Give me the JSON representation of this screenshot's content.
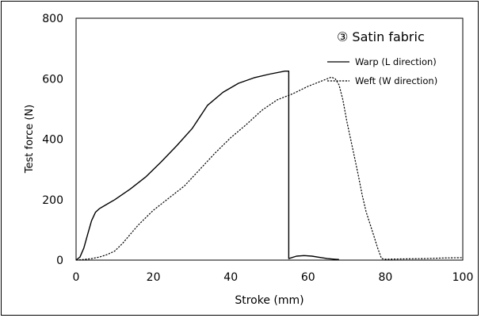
{
  "chart_data": {
    "type": "line",
    "title": "③ Satin fabric",
    "xlabel": "Stroke (mm)",
    "ylabel": "Test force (N)",
    "xlim": [
      0,
      100
    ],
    "ylim": [
      0,
      800
    ],
    "xticks": [
      "0",
      "20",
      "40",
      "60",
      "80",
      "100"
    ],
    "yticks": [
      "0",
      "200",
      "400",
      "600",
      "800"
    ],
    "grid": false,
    "legend_position": "top-right",
    "series": [
      {
        "name": "Warp (L direction)",
        "style": "solid",
        "color": "#000000",
        "x": [
          0,
          1,
          2,
          3,
          4,
          5,
          6,
          8,
          10,
          14,
          18,
          22,
          26,
          30,
          34,
          38,
          42,
          46,
          50,
          54,
          55,
          55,
          57,
          59,
          61,
          63,
          65,
          67,
          68
        ],
        "y": [
          0,
          10,
          40,
          85,
          130,
          158,
          170,
          185,
          200,
          235,
          275,
          325,
          378,
          435,
          512,
          555,
          585,
          603,
          615,
          625,
          625,
          5,
          13,
          15,
          13,
          9,
          5,
          3,
          2
        ]
      },
      {
        "name": "Weft (W direction)",
        "style": "dashed",
        "color": "#000000",
        "x": [
          0,
          2,
          4,
          6,
          8,
          10,
          12,
          14,
          16,
          18,
          20,
          24,
          28,
          32,
          36,
          40,
          44,
          48,
          52,
          56,
          60,
          62,
          64,
          66,
          67,
          68,
          69,
          70,
          71,
          72,
          73,
          74,
          75,
          76,
          77,
          78,
          79,
          80,
          84,
          90,
          95,
          100
        ],
        "y": [
          0,
          2,
          5,
          10,
          18,
          30,
          55,
          85,
          115,
          140,
          165,
          205,
          245,
          300,
          355,
          405,
          448,
          495,
          530,
          550,
          575,
          585,
          595,
          605,
          600,
          580,
          530,
          460,
          400,
          340,
          280,
          215,
          160,
          120,
          80,
          40,
          5,
          3,
          4,
          5,
          7,
          8
        ]
      }
    ]
  }
}
